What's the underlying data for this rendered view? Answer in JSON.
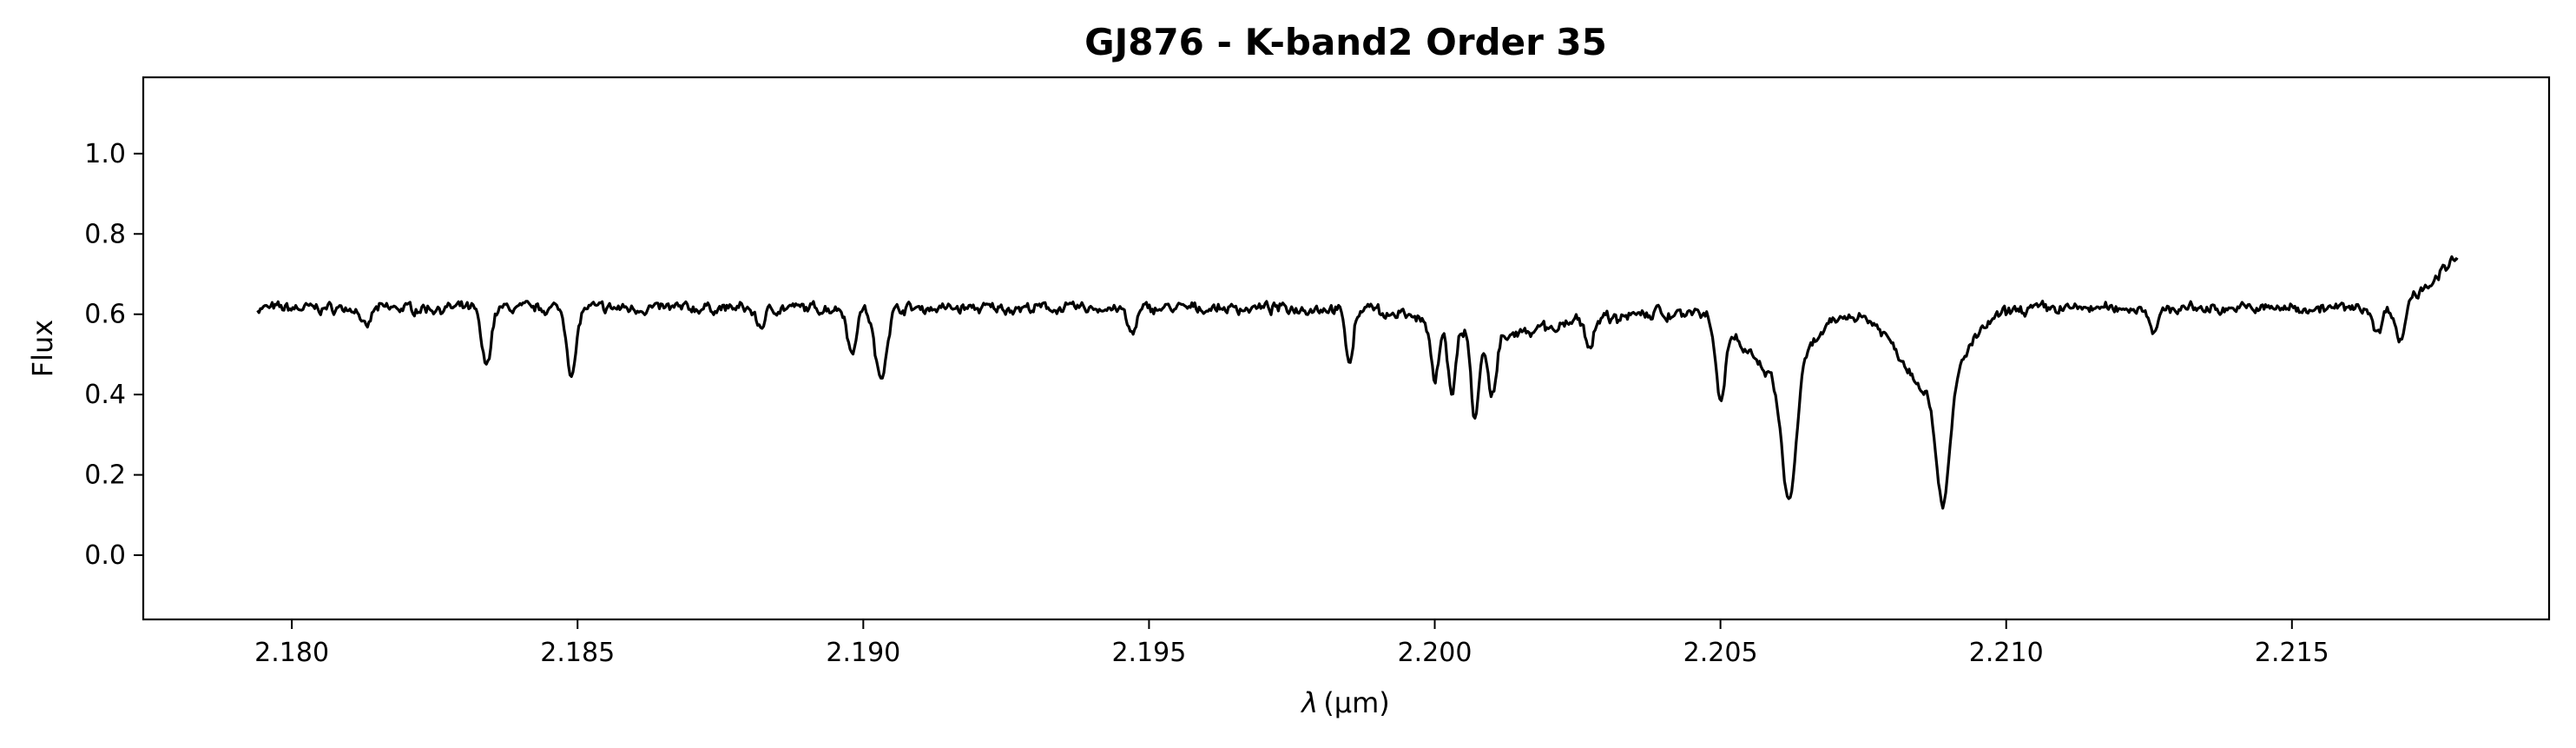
{
  "chart_data": {
    "type": "line",
    "title": "GJ876 - K-band2 Order 35",
    "xlabel_symbol": "λ",
    "xlabel_unit": "(μm)",
    "ylabel": "Flux",
    "xlim": [
      2.1774,
      2.2195
    ],
    "ylim": [
      -0.16,
      1.19
    ],
    "xticks": [
      2.18,
      2.185,
      2.19,
      2.195,
      2.2,
      2.205,
      2.21,
      2.215
    ],
    "xtick_labels": [
      "2.180",
      "2.185",
      "2.190",
      "2.195",
      "2.200",
      "2.205",
      "2.210",
      "2.215"
    ],
    "yticks": [
      0.0,
      0.2,
      0.4,
      0.6,
      0.8,
      1.0
    ],
    "ytick_labels": [
      "0.0",
      "0.2",
      "0.4",
      "0.6",
      "0.8",
      "1.0"
    ],
    "grid": false,
    "line_color": "#000000",
    "series": [
      {
        "x_start": 2.1794,
        "x_end": 2.2179,
        "baseline": 0.615,
        "noise": 0.012,
        "end_value": 0.74,
        "absorption_lines": [
          [
            2.1834,
            0.47,
            8e-05
          ],
          [
            2.1849,
            0.45,
            8e-05
          ],
          [
            2.1813,
            0.56,
            7e-05
          ],
          [
            2.1882,
            0.57,
            8e-05
          ],
          [
            2.1898,
            0.5,
            7e-05
          ],
          [
            2.1903,
            0.44,
            0.0001
          ],
          [
            2.1947,
            0.55,
            8e-05
          ],
          [
            2.1985,
            0.49,
            7e-05
          ],
          [
            2.2,
            0.47,
            7e-05
          ],
          [
            2.2003,
            0.45,
            7e-05
          ],
          [
            2.2007,
            0.41,
            7e-05
          ],
          [
            2.201,
            0.46,
            7e-05
          ],
          [
            2.2027,
            0.55,
            8e-05
          ],
          [
            2.205,
            0.43,
            8e-05
          ],
          [
            2.2062,
            0.29,
            0.00012
          ],
          [
            2.2089,
            0.32,
            0.00012
          ],
          [
            2.2126,
            0.56,
            8e-05
          ],
          [
            2.2165,
            0.55,
            7e-05
          ],
          [
            2.2169,
            0.52,
            7e-05
          ]
        ],
        "broad_dips": [
          [
            2.206,
            0.17,
            0.00055
          ],
          [
            2.2087,
            0.2,
            0.00055
          ],
          [
            2.201,
            0.05,
            0.0008
          ]
        ]
      }
    ]
  }
}
